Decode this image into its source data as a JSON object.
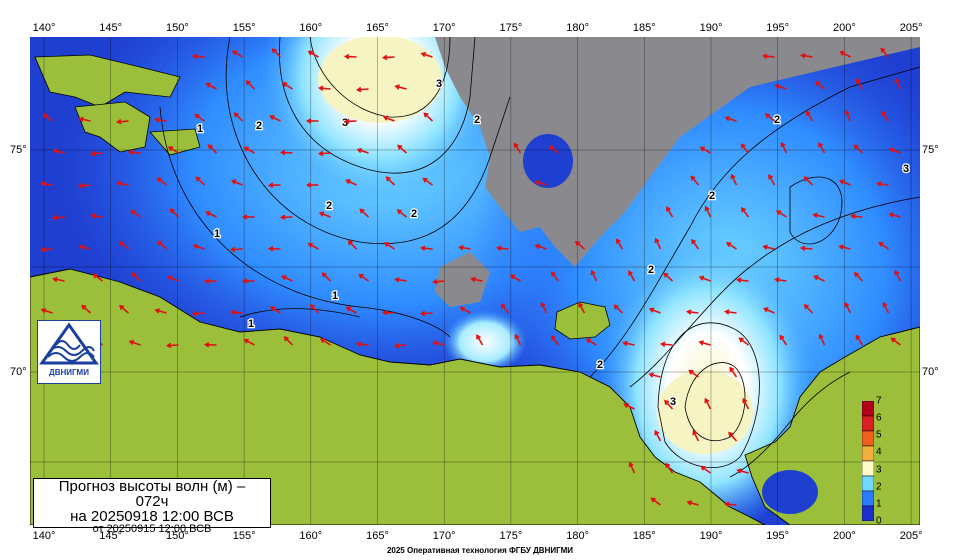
{
  "map": {
    "title": "Прогноз высоты волн (м) –",
    "lead": "072ч",
    "valid_time": "на 20250918 12:00 ВСВ",
    "issued": "от 20250915 12:00 ВСВ",
    "footer": "2025 Оперативная технология ФГБУ ДВНИГМИ",
    "logo_text": "ДВНИГМИ",
    "lon_labels": [
      "140°",
      "145°",
      "150°",
      "155°",
      "160°",
      "165°",
      "170°",
      "175°",
      "180°",
      "185°",
      "190°",
      "195°",
      "200°",
      "205°"
    ],
    "lat_labels": [
      "75°",
      "70°"
    ],
    "legend": {
      "labels": [
        "7",
        "6",
        "5",
        "4",
        "3",
        "2",
        "1",
        "0"
      ],
      "colors": [
        "#b3001a",
        "#d82020",
        "#ef6020",
        "#f2b040",
        "#fffbc8",
        "#70d8ff",
        "#2a7cff",
        "#1c2fc8"
      ]
    },
    "contour_labels": [
      "1",
      "1",
      "1",
      "1",
      "2",
      "2",
      "2",
      "2",
      "2",
      "2",
      "2",
      "2",
      "3",
      "3",
      "3",
      "3"
    ],
    "colors": {
      "land": "#9bbf3a",
      "ice": "#8a8a8e",
      "sea_calm": "#1f3fd0",
      "wave_high": "#f7f4c4",
      "arrow": "#e01010"
    },
    "icons": [
      "logo-wave-icon"
    ]
  }
}
